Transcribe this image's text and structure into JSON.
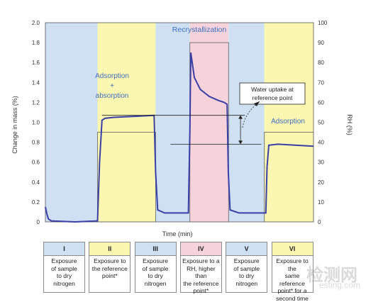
{
  "chart_data": {
    "type": "line",
    "xlabel": "Time (min)",
    "ylabel": "Change in mass (%)",
    "y2label": "RH (%)",
    "ylim": [
      0,
      2.0
    ],
    "y2lim": [
      0,
      100
    ],
    "yticks": [
      "0",
      "0.2",
      "0.4",
      "0.6",
      "0.8",
      "1.0",
      "1.2",
      "1.4",
      "1.6",
      "1.8",
      "2.0"
    ],
    "y2ticks": [
      "0",
      "10",
      "20",
      "30",
      "40",
      "50",
      "60",
      "70",
      "80",
      "90",
      "100"
    ],
    "phases": [
      {
        "numeral": "I",
        "color": "#cfe0f3",
        "rh": 0,
        "desc": [
          "Exposure",
          "of sample",
          "to dry",
          "nitrogen"
        ]
      },
      {
        "numeral": "II",
        "color": "#fbf6b0",
        "rh": 45,
        "desc": [
          "Exposure to",
          "the reference",
          "point*"
        ]
      },
      {
        "numeral": "III",
        "color": "#cfe0f3",
        "rh": 0,
        "desc": [
          "Exposure",
          "of sample",
          "to dry",
          "nitrogen"
        ]
      },
      {
        "numeral": "IV",
        "color": "#f6d3da",
        "rh": 90,
        "desc": [
          "Exposure to a",
          "RH, higher than",
          "the reference",
          "point*"
        ]
      },
      {
        "numeral": "V",
        "color": "#cfe0f3",
        "rh": 0,
        "desc": [
          "Exposure",
          "of sample",
          "to dry",
          "nitrogen"
        ]
      },
      {
        "numeral": "VI",
        "color": "#fbf6b0",
        "rh": 45,
        "desc": [
          "Exposure to the",
          "same reference",
          "point* for a",
          "second time"
        ]
      }
    ],
    "series": [
      {
        "color": "#3a3fa8",
        "points": [
          [
            0,
            0.15
          ],
          [
            0.5,
            0.08
          ],
          [
            1,
            0.03
          ],
          [
            2,
            0.01
          ],
          [
            10,
            0.0
          ],
          [
            17.5,
            0.01
          ],
          [
            18.2,
            0.6
          ],
          [
            19,
            1.02
          ],
          [
            20,
            1.04
          ],
          [
            23,
            1.05
          ],
          [
            30,
            1.06
          ],
          [
            36.5,
            1.07
          ],
          [
            37,
            0.5
          ],
          [
            37.7,
            0.12
          ],
          [
            40,
            0.09
          ],
          [
            48,
            0.09
          ],
          [
            48.5,
            0.9
          ],
          [
            48.8,
            1.7
          ],
          [
            50,
            1.45
          ],
          [
            52,
            1.33
          ],
          [
            55,
            1.26
          ],
          [
            58,
            1.22
          ],
          [
            60,
            1.2
          ],
          [
            61,
            1.18
          ],
          [
            61.4,
            0.5
          ],
          [
            62,
            0.12
          ],
          [
            65,
            0.09
          ],
          [
            73,
            0.09
          ],
          [
            74,
            0.09
          ],
          [
            74.4,
            0.55
          ],
          [
            75,
            0.77
          ],
          [
            78,
            0.78
          ],
          [
            90,
            0.76
          ]
        ]
      }
    ],
    "annotations": {
      "recrystallization": "Recrystallization",
      "adsorption_absorption": [
        "Adsorption",
        "+",
        "absorption"
      ],
      "adsorption": "Adsorption",
      "water_uptake": [
        "Water uptake at",
        "reference point"
      ],
      "ref_level_high": 1.07,
      "ref_level_low": 0.78
    }
  },
  "watermark": {
    "cn": "检测网",
    "en": "esting.com"
  }
}
